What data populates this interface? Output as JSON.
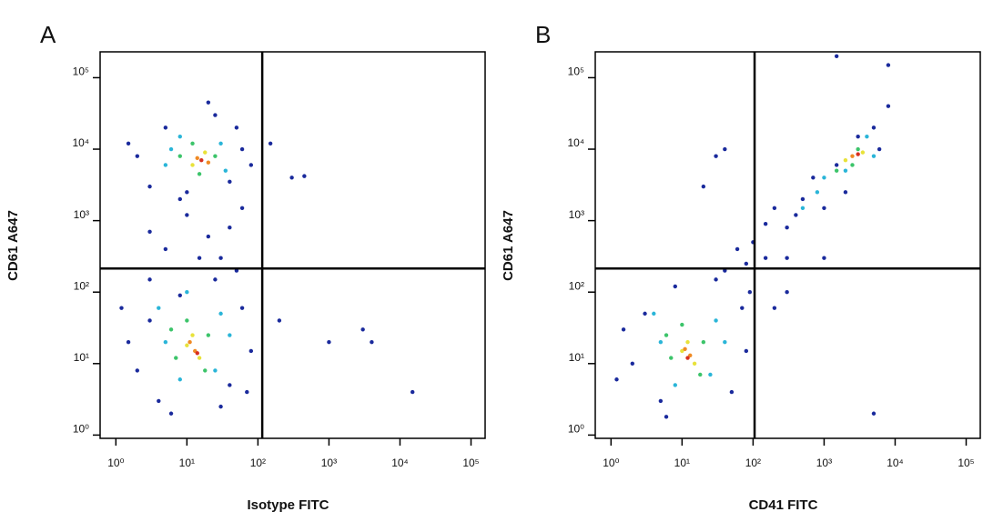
{
  "chart_data": [
    {
      "type": "scatter",
      "panel": "A",
      "x_label": "Isotype FITC",
      "y_label": "CD61 A647",
      "log_x": true,
      "log_y": true,
      "xlim": [
        0.6,
        158000
      ],
      "ylim": [
        0.9,
        230000
      ],
      "xticks": [
        {
          "value": 1,
          "label": "10⁰"
        },
        {
          "value": 10,
          "label": "10¹"
        },
        {
          "value": 100,
          "label": "10²"
        },
        {
          "value": 1000,
          "label": "10³"
        },
        {
          "value": 10000,
          "label": "10⁴"
        },
        {
          "value": 100000,
          "label": "10⁵"
        }
      ],
      "yticks": [
        {
          "value": 1,
          "label": "10⁰"
        },
        {
          "value": 10,
          "label": "10¹"
        },
        {
          "value": 100,
          "label": "10²"
        },
        {
          "value": 1000,
          "label": "10³"
        },
        {
          "value": 10000,
          "label": "10⁴"
        },
        {
          "value": 100000,
          "label": "10⁵"
        }
      ],
      "gates": {
        "x": 115,
        "y": 214
      },
      "series": [
        {
          "color": "#1a2a9c",
          "x": [
            2,
            3,
            4,
            40,
            60,
            25,
            3,
            1.5,
            80,
            6,
            50,
            8,
            30,
            1.2,
            70,
            5,
            20,
            10,
            40,
            8,
            30,
            15,
            60,
            3,
            2,
            3,
            40,
            60,
            25,
            5,
            80,
            1.5,
            10,
            50,
            20,
            300,
            450,
            1000,
            3000,
            4000,
            200,
            15000,
            150
          ],
          "y": [
            8,
            40,
            3,
            5,
            60,
            150,
            150,
            20,
            15,
            2,
            200,
            90,
            2.5,
            60,
            4,
            400,
            600,
            1200,
            800,
            2000,
            300,
            300,
            1500,
            700,
            8000,
            3000,
            3500,
            10000,
            30000,
            20000,
            6000,
            12000,
            2500,
            20000,
            45000,
            4000,
            4200,
            20,
            30,
            20,
            40,
            4,
            12000
          ]
        },
        {
          "color": "#2ab5d8",
          "x": [
            5,
            30,
            8,
            25,
            4,
            40,
            10,
            5,
            30,
            8,
            35,
            6
          ],
          "y": [
            20,
            50,
            6,
            8,
            60,
            25,
            100,
            6000,
            12000,
            15000,
            5000,
            10000
          ]
        },
        {
          "color": "#3cc46a",
          "x": [
            7,
            20,
            10,
            18,
            6,
            8,
            25,
            12,
            15
          ],
          "y": [
            12,
            25,
            40,
            8,
            30,
            8000,
            8000,
            12000,
            4500
          ]
        },
        {
          "color": "#e8e23a",
          "x": [
            10,
            15,
            12,
            12,
            18
          ],
          "y": [
            18,
            12,
            25,
            6000,
            9000
          ]
        },
        {
          "color": "#f08a24",
          "x": [
            13,
            11,
            14,
            20
          ],
          "y": [
            15,
            20,
            7500,
            6500
          ]
        },
        {
          "color": "#d7301f",
          "x": [
            14,
            16
          ],
          "y": [
            14,
            7000
          ]
        }
      ]
    },
    {
      "type": "scatter",
      "panel": "B",
      "x_label": "CD41 FITC",
      "y_label": "CD61 A647",
      "log_x": true,
      "log_y": true,
      "xlim": [
        0.6,
        158000
      ],
      "ylim": [
        0.9,
        230000
      ],
      "xticks": [
        {
          "value": 1,
          "label": "10⁰"
        },
        {
          "value": 10,
          "label": "10¹"
        },
        {
          "value": 100,
          "label": "10²"
        },
        {
          "value": 1000,
          "label": "10³"
        },
        {
          "value": 10000,
          "label": "10⁴"
        },
        {
          "value": 100000,
          "label": "10⁵"
        }
      ],
      "yticks": [
        {
          "value": 1,
          "label": "10⁰"
        },
        {
          "value": 10,
          "label": "10¹"
        },
        {
          "value": 100,
          "label": "10²"
        },
        {
          "value": 1000,
          "label": "10³"
        },
        {
          "value": 10000,
          "label": "10⁴"
        },
        {
          "value": 100000,
          "label": "10⁵"
        }
      ],
      "gates": {
        "x": 105,
        "y": 214
      },
      "series": [
        {
          "color": "#1a2a9c",
          "x": [
            2,
            3,
            5,
            50,
            70,
            30,
            1.5,
            80,
            6,
            1.2,
            40,
            90,
            8,
            60,
            100,
            150,
            300,
            200,
            500,
            400,
            1000,
            700,
            1500,
            2000,
            5000,
            8000,
            6000,
            3000,
            150,
            300,
            1000,
            80,
            20,
            40,
            30,
            1500,
            8000,
            5000,
            300,
            200
          ],
          "y": [
            10,
            50,
            3,
            4,
            60,
            150,
            30,
            15,
            1.8,
            6,
            200,
            100,
            120,
            400,
            500,
            900,
            800,
            1500,
            2000,
            1200,
            1500,
            4000,
            6000,
            2500,
            20000,
            40000,
            10000,
            15000,
            300,
            300,
            300,
            250,
            3000,
            10000,
            8000,
            200000,
            150000,
            2,
            100,
            60
          ]
        },
        {
          "color": "#2ab5d8",
          "x": [
            5,
            30,
            8,
            25,
            4,
            40,
            500,
            1000,
            2000,
            4000,
            5000,
            800
          ],
          "y": [
            20,
            40,
            5,
            7,
            50,
            20,
            1500,
            4000,
            5000,
            15000,
            8000,
            2500
          ]
        },
        {
          "color": "#3cc46a",
          "x": [
            7,
            20,
            10,
            18,
            6,
            1500,
            3000,
            2500
          ],
          "y": [
            12,
            20,
            35,
            7,
            25,
            5000,
            10000,
            6000
          ]
        },
        {
          "color": "#e8e23a",
          "x": [
            10,
            15,
            12,
            2000,
            3500
          ],
          "y": [
            15,
            10,
            20,
            7000,
            9000
          ]
        },
        {
          "color": "#f08a24",
          "x": [
            13,
            11,
            2500
          ],
          "y": [
            13,
            16,
            8000
          ]
        },
        {
          "color": "#d7301f",
          "x": [
            12,
            3000
          ],
          "y": [
            12,
            8500
          ]
        }
      ]
    }
  ]
}
